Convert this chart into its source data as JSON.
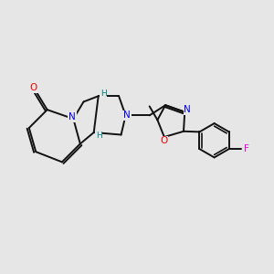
{
  "bg_color": "#e6e6e6",
  "atom_color_N": "#0000ee",
  "atom_color_O": "#ee0000",
  "atom_color_F": "#ee00ee",
  "atom_color_N_teal": "#008080",
  "atom_color_C": "#111111",
  "bond_color": "#111111",
  "bond_width": 1.4,
  "figsize": [
    3.0,
    3.0
  ],
  "dpi": 100,
  "xlim": [
    0,
    12
  ],
  "ylim": [
    0,
    10
  ]
}
